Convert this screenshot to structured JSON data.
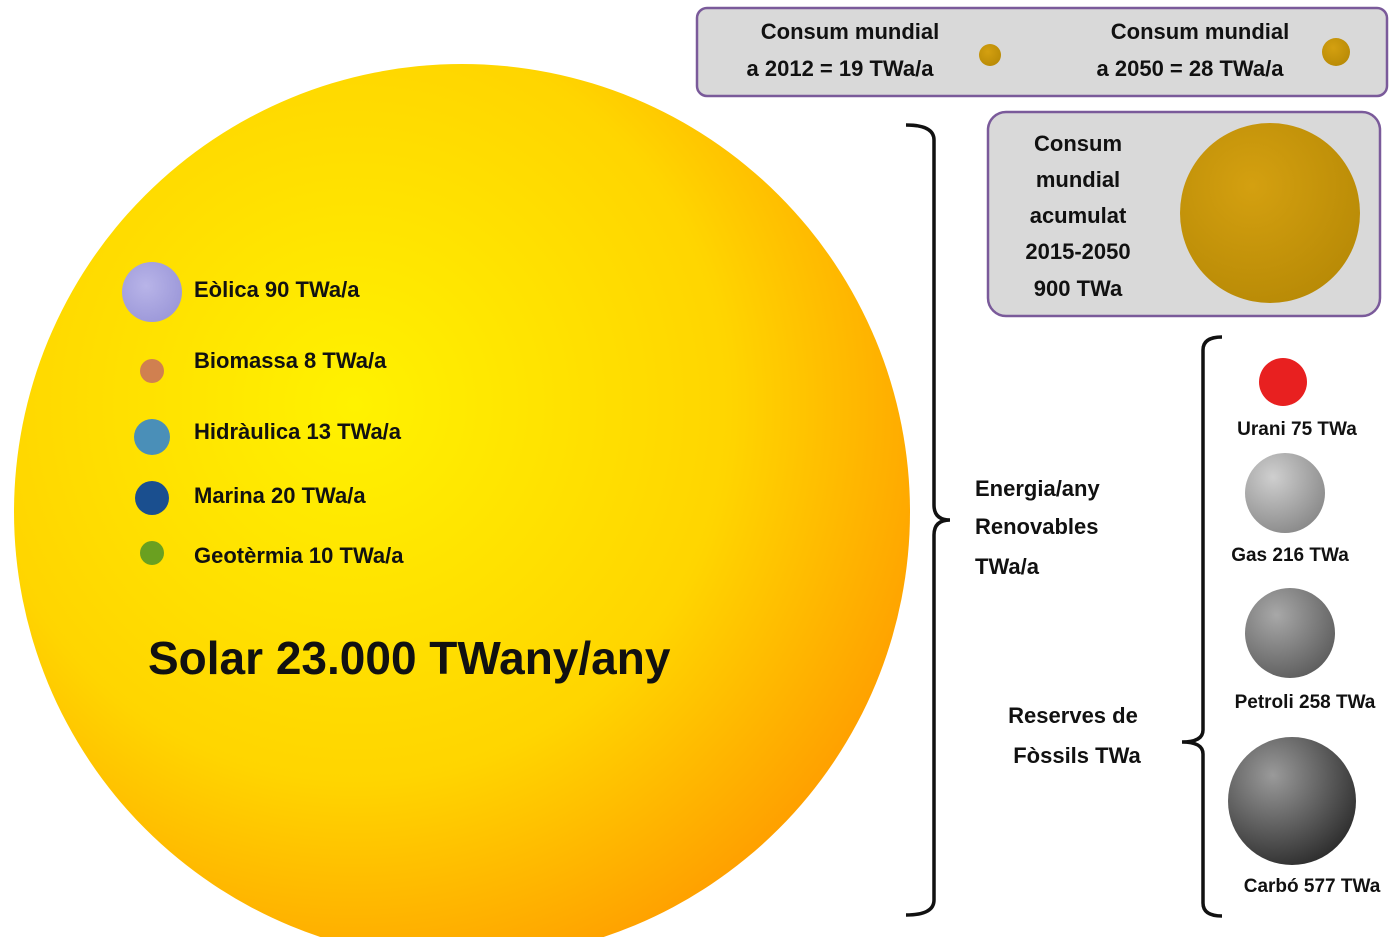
{
  "solar": {
    "label": "Solar 23.000 TWany/any"
  },
  "renewables": [
    {
      "label": "Eòlica 90 TWa/a"
    },
    {
      "label": "Biomassa 8 TWa/a"
    },
    {
      "label": "Hidràulica 13 TWa/a"
    },
    {
      "label": "Marina 20 TWa/a"
    },
    {
      "label": "Geotèrmia 10 TWa/a"
    }
  ],
  "consumption": [
    {
      "lines": [
        "Consum mundial",
        "a 2012 = 19 TWa/a"
      ]
    },
    {
      "lines": [
        "Consum mundial",
        "a 2050 = 28 TWa/a"
      ]
    }
  ],
  "cumulative": {
    "lines": [
      "Consum",
      "mundial",
      "acumulat",
      "2015-2050",
      "900 TWa"
    ]
  },
  "renewables_group": {
    "lines": [
      "Energia/any",
      "Renovables",
      "TWa/a"
    ]
  },
  "fossils_group": {
    "lines": [
      "Reserves de",
      "Fòssils TWa"
    ]
  },
  "fossils": [
    {
      "label": "Urani 75 TWa"
    },
    {
      "label": "Gas 216 TWa"
    },
    {
      "label": "Petroli 258 TWa"
    },
    {
      "label": "Carbó 577 TWa"
    }
  ]
}
